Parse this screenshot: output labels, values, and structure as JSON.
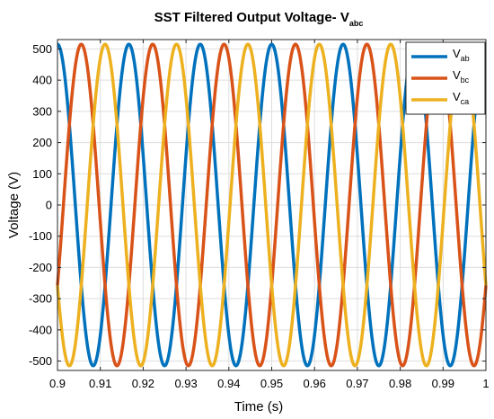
{
  "chart_data": {
    "type": "line",
    "title": {
      "main": "SST Filtered Output Voltage- V",
      "sub": "abc"
    },
    "xlabel": "Time (s)",
    "ylabel": "Voltage (V)",
    "xlim": [
      0.9,
      1.0
    ],
    "ylim": [
      -530,
      530
    ],
    "x_ticks": [
      0.9,
      0.91,
      0.92,
      0.93,
      0.94,
      0.95,
      0.96,
      0.97,
      0.98,
      0.99,
      1.0
    ],
    "x_tick_labels": [
      "0.9",
      "0.91",
      "0.92",
      "0.93",
      "0.94",
      "0.95",
      "0.96",
      "0.97",
      "0.98",
      "0.99",
      "1"
    ],
    "y_ticks": [
      500,
      400,
      300,
      200,
      100,
      0,
      -100,
      -200,
      -300,
      -400,
      -500
    ],
    "y_tick_labels": [
      "500",
      "400",
      "300",
      "200",
      "100",
      "0",
      "-100",
      "-200",
      "-300",
      "-400",
      "-500"
    ],
    "grid": true,
    "legend_position": "top-right",
    "series": [
      {
        "name": "V",
        "name_sub": "ab",
        "color": "#0072BD",
        "amplitude": 515,
        "frequency_hz": 60,
        "phase_deg": 90
      },
      {
        "name": "V",
        "name_sub": "bc",
        "color": "#D95319",
        "amplitude": 515,
        "frequency_hz": 60,
        "phase_deg": -30
      },
      {
        "name": "V",
        "name_sub": "ca",
        "color": "#EDB120",
        "amplitude": 515,
        "frequency_hz": 60,
        "phase_deg": 210
      }
    ]
  }
}
